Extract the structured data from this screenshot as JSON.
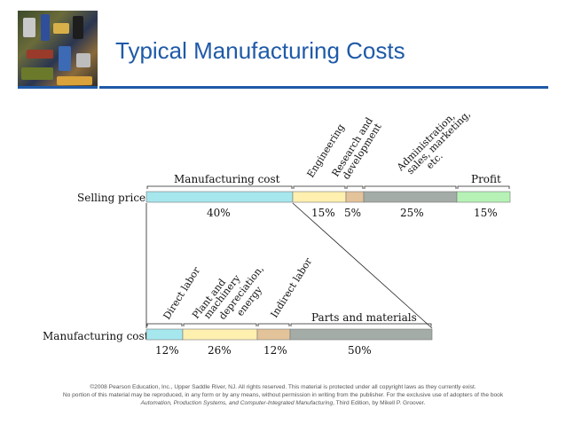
{
  "slide": {
    "title": "Typical Manufacturing Costs"
  },
  "selling_price": {
    "row_label": "Selling price",
    "segments": [
      {
        "label": "Manufacturing cost",
        "percent": 40,
        "percent_text": "40%",
        "color": "#a6e7ee"
      },
      {
        "label": "Engineering",
        "percent": 15,
        "percent_text": "15%",
        "color": "#fff0b0"
      },
      {
        "label": "Research and development",
        "percent": 5,
        "percent_text": "5%",
        "color": "#e3c39a"
      },
      {
        "label": "Administration, sales, marketing, etc.",
        "percent": 25,
        "percent_text": "25%",
        "color": "#a3aca6"
      },
      {
        "label": "Profit",
        "percent": 15,
        "percent_text": "15%",
        "color": "#b6f2b6"
      }
    ],
    "labels": {
      "manufacturing_cost": "Manufacturing cost",
      "engineering": "Engineering",
      "research_1": "Research and",
      "research_2": "development",
      "admin_1": "Administration,",
      "admin_2": "sales, marketing,",
      "admin_3": "etc.",
      "profit": "Profit"
    }
  },
  "manufacturing_cost": {
    "row_label": "Manufacturing cost",
    "segments": [
      {
        "label": "Direct labor",
        "percent": 12,
        "percent_text": "12%",
        "color": "#a6e7ee"
      },
      {
        "label": "Plant and machinery depreciation, energy",
        "percent": 26,
        "percent_text": "26%",
        "color": "#fff0b0"
      },
      {
        "label": "Indirect labor",
        "percent": 12,
        "percent_text": "12%",
        "color": "#e3c39a"
      },
      {
        "label": "Parts and materials",
        "percent": 50,
        "percent_text": "50%",
        "color": "#a3aca6"
      }
    ],
    "labels": {
      "direct_labor": "Direct labor",
      "plant_1": "Plant and",
      "plant_2": "machinery",
      "plant_3": "depreciation,",
      "plant_4": "energy",
      "indirect_labor": "Indirect labor",
      "parts": "Parts and materials"
    }
  },
  "footer": {
    "line1": "©2008 Pearson Education, Inc., Upper Saddle River, NJ.  All rights reserved.  This material is protected under all copyright laws as they currently exist.",
    "line2": "No portion of this material may be reproduced, in any form or by any means, without permission in writing from the publisher.  For the exclusive use of adopters of the book",
    "book_title": "Automation, Production Systems, and Computer-Integrated Manufacturing",
    "line3_rest": ", Third Edition, by Mikell P. Groover."
  }
}
